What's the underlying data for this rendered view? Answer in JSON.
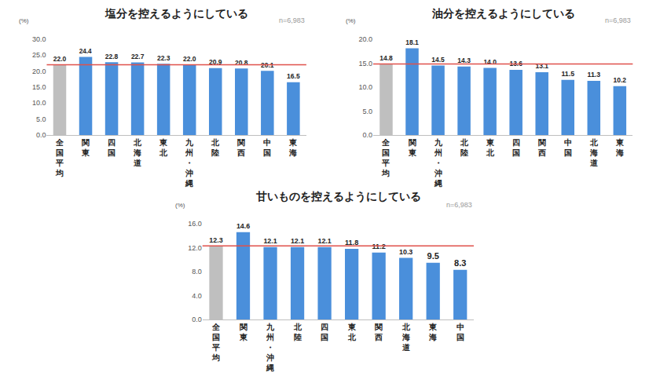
{
  "chart_data": [
    {
      "type": "bar",
      "title": "塩分を控えるようにしている",
      "y_label": "(%)",
      "note": "n=6,983",
      "categories": [
        "全国平均",
        "関東",
        "四国",
        "北海道",
        "東北",
        "九州・沖縄",
        "北陸",
        "関西",
        "中国",
        "東海"
      ],
      "values": [
        22.0,
        24.4,
        22.8,
        22.7,
        22.3,
        22.0,
        20.9,
        20.8,
        20.1,
        16.5
      ],
      "value_labels": [
        "22.0",
        "24.4",
        "22.8",
        "22.7",
        "22.3",
        "22.0",
        "20.9",
        "20.8",
        "20.1",
        "16.5"
      ],
      "colors": [
        "#bfbfbf",
        "#4a8fdb",
        "#4a8fdb",
        "#4a8fdb",
        "#4a8fdb",
        "#4a8fdb",
        "#4a8fdb",
        "#4a8fdb",
        "#4a8fdb",
        "#4a8fdb"
      ],
      "reference_line": 22.0,
      "reference_color": "#e0514b",
      "ylim": [
        0,
        30
      ],
      "yticks": [
        {
          "value": 0,
          "label": "0.0"
        },
        {
          "value": 5,
          "label": "5.0"
        },
        {
          "value": 10,
          "label": "10.0"
        },
        {
          "value": 15,
          "label": "15.0"
        },
        {
          "value": 20,
          "label": "20.0"
        },
        {
          "value": 25,
          "label": "25.0"
        },
        {
          "value": 30,
          "label": "30.0"
        }
      ],
      "grid": false,
      "data_labels": true
    },
    {
      "type": "bar",
      "title": "油分を控えるようにしている",
      "y_label": "(%)",
      "note": "n=6,983",
      "categories": [
        "全国平均",
        "関東",
        "九州・沖縄",
        "北陸",
        "東北",
        "四国",
        "関西",
        "中国",
        "北海道",
        "東海"
      ],
      "values": [
        14.8,
        18.1,
        14.5,
        14.3,
        14.0,
        13.6,
        13.1,
        11.5,
        11.3,
        10.2
      ],
      "value_labels": [
        "14.8",
        "18.1",
        "14.5",
        "14.3",
        "14.0",
        "13.6",
        "13.1",
        "11.5",
        "11.3",
        "10.2"
      ],
      "colors": [
        "#bfbfbf",
        "#4a8fdb",
        "#4a8fdb",
        "#4a8fdb",
        "#4a8fdb",
        "#4a8fdb",
        "#4a8fdb",
        "#4a8fdb",
        "#4a8fdb",
        "#4a8fdb"
      ],
      "reference_line": 14.8,
      "reference_color": "#e0514b",
      "ylim": [
        0,
        20
      ],
      "yticks": [
        {
          "value": 0,
          "label": "0.0"
        },
        {
          "value": 5,
          "label": "5.0"
        },
        {
          "value": 10,
          "label": "10.0"
        },
        {
          "value": 15,
          "label": "15.0"
        },
        {
          "value": 20,
          "label": "20.0"
        }
      ],
      "grid": false,
      "data_labels": true
    },
    {
      "type": "bar",
      "title": "甘いものを控えるようにしている",
      "y_label": "(%)",
      "note": "n=6,983",
      "categories": [
        "全国平均",
        "関東",
        "九州・沖縄",
        "北陸",
        "四国",
        "東北",
        "関西",
        "北海道",
        "東海",
        "中国"
      ],
      "values": [
        12.3,
        14.6,
        12.1,
        12.1,
        12.1,
        11.8,
        11.2,
        10.3,
        9.5,
        8.3
      ],
      "value_labels": [
        "12.3",
        "14.6",
        "12.1",
        "12.1",
        "12.1",
        "11.8",
        "11.2",
        "10.3",
        "9.5",
        "8.3"
      ],
      "colors": [
        "#bfbfbf",
        "#4a8fdb",
        "#4a8fdb",
        "#4a8fdb",
        "#4a8fdb",
        "#4a8fdb",
        "#4a8fdb",
        "#4a8fdb",
        "#4a8fdb",
        "#4a8fdb"
      ],
      "reference_line": 12.3,
      "reference_color": "#e0514b",
      "ylim": [
        0,
        16
      ],
      "yticks": [
        {
          "value": 0,
          "label": "0.0"
        },
        {
          "value": 4,
          "label": "4.0"
        },
        {
          "value": 8,
          "label": "8.0"
        },
        {
          "value": 12,
          "label": "12.0"
        },
        {
          "value": 16,
          "label": "16.0"
        }
      ],
      "grid": false,
      "data_labels": true
    }
  ]
}
